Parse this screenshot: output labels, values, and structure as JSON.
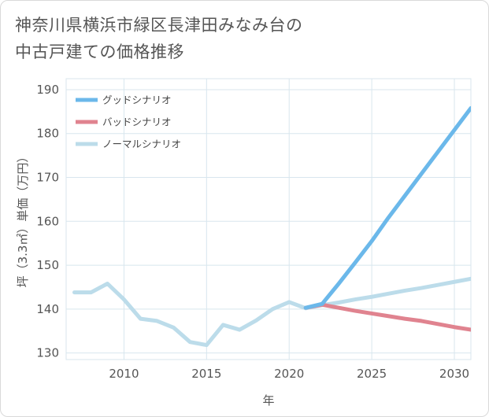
{
  "title_lines": [
    "神奈川県横浜市緑区長津田みなみ台の",
    "中古戸建ての価格推移"
  ],
  "chart_data": {
    "type": "line",
    "title": "神奈川県横浜市緑区長津田みなみ台の中古戸建ての価格推移",
    "xlabel": "年",
    "ylabel": "坪（3.3㎡）単価（万円）",
    "xlim": [
      2006.5,
      2031
    ],
    "ylim": [
      128.5,
      192.5
    ],
    "x_ticks": [
      2010,
      2015,
      2020,
      2025,
      2030
    ],
    "y_ticks": [
      130,
      140,
      150,
      160,
      170,
      180,
      190
    ],
    "grid": true,
    "legend_position": "top-left",
    "series": [
      {
        "name": "グッドシナリオ",
        "color": "#6bb8ea",
        "x": [
          2021,
          2022,
          2023,
          2024,
          2025,
          2026,
          2027,
          2028,
          2029,
          2030,
          2031
        ],
        "y": [
          140.3,
          141.2,
          145.8,
          150.6,
          155.5,
          160.8,
          165.8,
          170.8,
          175.8,
          180.8,
          185.8
        ]
      },
      {
        "name": "バッドシナリオ",
        "color": "#e0838f",
        "x": [
          2021,
          2022,
          2023,
          2024,
          2025,
          2026,
          2027,
          2028,
          2029,
          2030,
          2031
        ],
        "y": [
          140.3,
          141.0,
          140.3,
          139.6,
          139.0,
          138.4,
          137.8,
          137.3,
          136.6,
          135.9,
          135.3
        ]
      },
      {
        "name": "ノーマルシナリオ",
        "color": "#bcdcea",
        "x": [
          2007,
          2008,
          2009,
          2010,
          2011,
          2012,
          2013,
          2014,
          2015,
          2016,
          2017,
          2018,
          2019,
          2020,
          2021,
          2022,
          2023,
          2024,
          2025,
          2026,
          2027,
          2028,
          2029,
          2030,
          2031
        ],
        "y": [
          143.8,
          143.8,
          145.8,
          142.2,
          137.8,
          137.3,
          135.8,
          132.5,
          131.8,
          136.4,
          135.3,
          137.4,
          140.0,
          141.6,
          140.2,
          140.9,
          141.5,
          142.2,
          142.8,
          143.5,
          144.2,
          144.8,
          145.5,
          146.2,
          146.9
        ]
      }
    ]
  }
}
